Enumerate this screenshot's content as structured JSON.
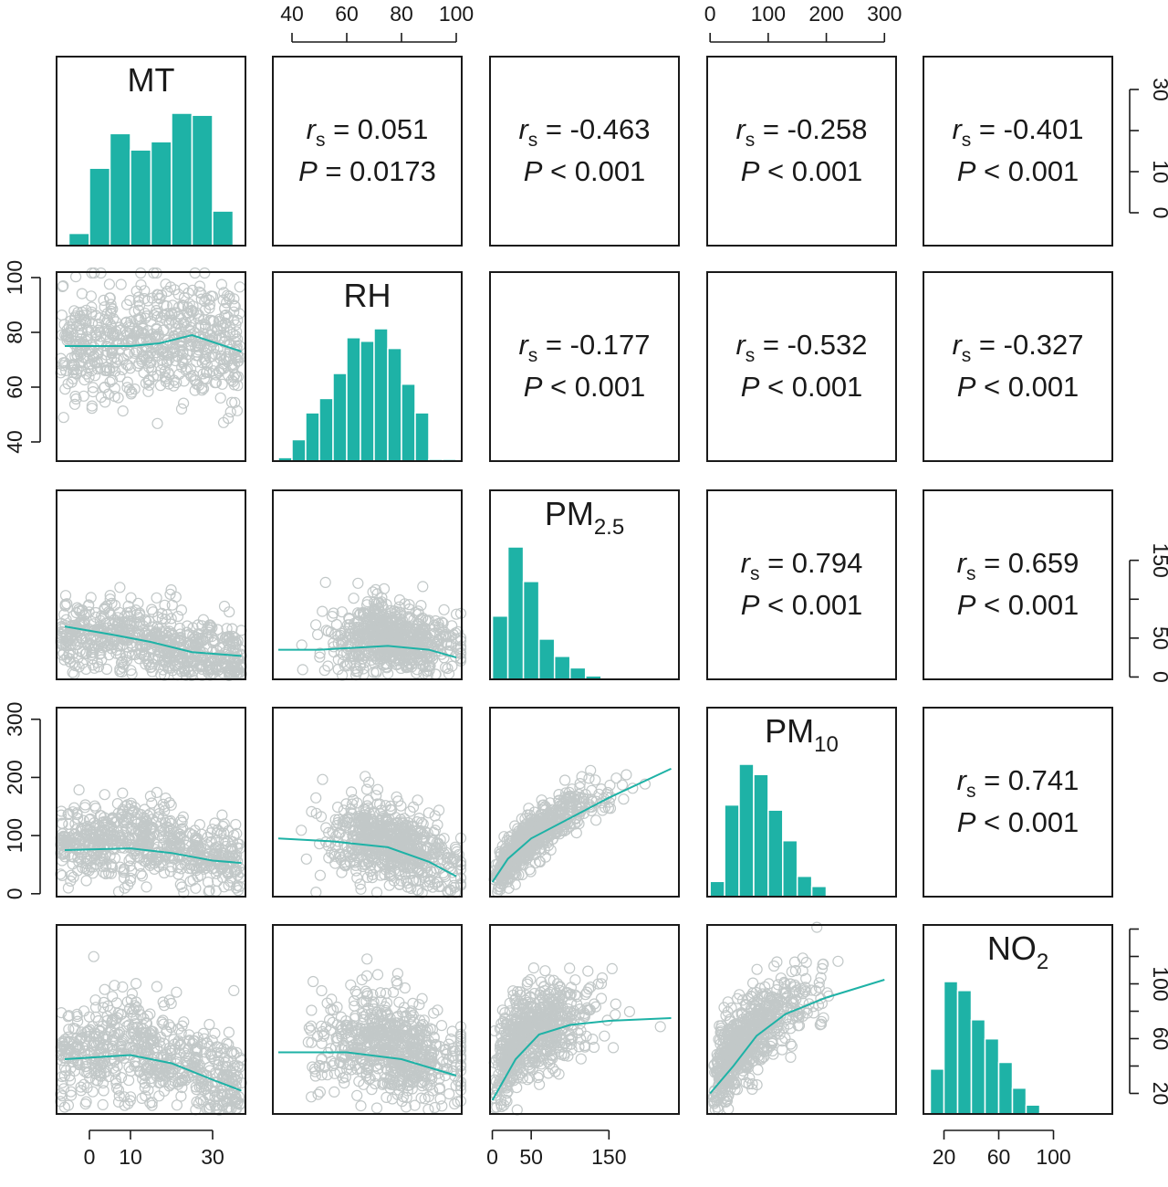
{
  "chart_data": {
    "type": "scatter-matrix",
    "colors": {
      "bar": "#1eb2a6",
      "smooth": "#1eb2a6",
      "points": "#c2c8c8"
    },
    "variables": [
      {
        "id": "MT",
        "label": "MT",
        "sub": "",
        "range": [
          -8,
          38
        ]
      },
      {
        "id": "RH",
        "label": "RH",
        "sub": "",
        "range": [
          33,
          102
        ]
      },
      {
        "id": "PM25",
        "label": "PM",
        "sub": "2.5",
        "range": [
          -3,
          240
        ]
      },
      {
        "id": "PM10",
        "label": "PM",
        "sub": "10",
        "range": [
          -5,
          320
        ]
      },
      {
        "id": "NO2",
        "label": "NO",
        "sub": "2",
        "range": [
          5,
          143
        ]
      }
    ],
    "axes": {
      "top": [
        {
          "col": 1,
          "ticks": [
            40,
            60,
            80,
            100
          ]
        },
        {
          "col": 3,
          "ticks": [
            0,
            100,
            200,
            300
          ]
        }
      ],
      "bottom": [
        {
          "col": 0,
          "ticks": [
            0,
            10,
            30
          ]
        },
        {
          "col": 2,
          "ticks": [
            0,
            50,
            150
          ]
        },
        {
          "col": 4,
          "ticks": [
            20,
            60,
            100
          ]
        }
      ],
      "left": [
        {
          "row": 1,
          "ticks": [
            40,
            60,
            80,
            100
          ]
        },
        {
          "row": 3,
          "ticks": [
            0,
            100,
            200,
            300
          ]
        }
      ],
      "right": [
        {
          "row": 0,
          "ticks": [
            0,
            10,
            30
          ],
          "minor": [
            20
          ]
        },
        {
          "row": 2,
          "ticks": [
            0,
            50,
            150
          ],
          "minor": [
            100
          ]
        },
        {
          "row": 4,
          "ticks": [
            20,
            60,
            100
          ],
          "minor": [
            40,
            80,
            120,
            140
          ]
        }
      ]
    },
    "histograms": [
      {
        "var": 0,
        "edges": [
          -5,
          0,
          5,
          10,
          15,
          20,
          25,
          30,
          35
        ],
        "counts": [
          6,
          38,
          55,
          47,
          51,
          65,
          64,
          17
        ]
      },
      {
        "var": 1,
        "edges": [
          35,
          40,
          45,
          50,
          55,
          60,
          65,
          70,
          75,
          80,
          85,
          90,
          95,
          100
        ],
        "counts": [
          2,
          12,
          27,
          35,
          49,
          69,
          67,
          74,
          63,
          43,
          27,
          1,
          1
        ]
      },
      {
        "var": 2,
        "edges": [
          0,
          20,
          40,
          60,
          80,
          100,
          120,
          140
        ],
        "counts": [
          55,
          115,
          85,
          35,
          20,
          10,
          3
        ]
      },
      {
        "var": 3,
        "edges": [
          0,
          25,
          50,
          75,
          100,
          125,
          150,
          175,
          200
        ],
        "counts": [
          15,
          90,
          130,
          120,
          85,
          55,
          20,
          10
        ]
      },
      {
        "var": 4,
        "edges": [
          10,
          20,
          30,
          40,
          50,
          60,
          70,
          80,
          90,
          100
        ],
        "counts": [
          40,
          118,
          110,
          84,
          67,
          46,
          23,
          8,
          1
        ]
      }
    ],
    "correlations": [
      {
        "row": 0,
        "col": 1,
        "r": "0.051",
        "p_op": "=",
        "p": "0.0173"
      },
      {
        "row": 0,
        "col": 2,
        "r": "-0.463",
        "p_op": "<",
        "p": "0.001"
      },
      {
        "row": 0,
        "col": 3,
        "r": "-0.258",
        "p_op": "<",
        "p": "0.001"
      },
      {
        "row": 0,
        "col": 4,
        "r": "-0.401",
        "p_op": "<",
        "p": "0.001"
      },
      {
        "row": 1,
        "col": 2,
        "r": "-0.177",
        "p_op": "<",
        "p": "0.001"
      },
      {
        "row": 1,
        "col": 3,
        "r": "-0.532",
        "p_op": "<",
        "p": "0.001"
      },
      {
        "row": 1,
        "col": 4,
        "r": "-0.327",
        "p_op": "<",
        "p": "0.001"
      },
      {
        "row": 2,
        "col": 3,
        "r": "0.794",
        "p_op": "<",
        "p": "0.001"
      },
      {
        "row": 2,
        "col": 4,
        "r": "0.659",
        "p_op": "<",
        "p": "0.001"
      },
      {
        "row": 3,
        "col": 4,
        "r": "0.741",
        "p_op": "<",
        "p": "0.001"
      }
    ],
    "scatter_panels": [
      {
        "row": 1,
        "col": 0,
        "n": 650,
        "x": [
          0,
          1
        ],
        "y_center": [
          [
            -6,
            75
          ],
          [
            10,
            75
          ],
          [
            25,
            79
          ],
          [
            37,
            73
          ]
        ],
        "y_spread": 13,
        "smooth": [
          [
            -6,
            75
          ],
          [
            10,
            75
          ],
          [
            17,
            76
          ],
          [
            25,
            79
          ],
          [
            37,
            73
          ]
        ]
      },
      {
        "row": 2,
        "col": 0,
        "n": 650,
        "x": [
          0,
          1
        ],
        "y_center": [
          [
            -6,
            55
          ],
          [
            10,
            55
          ],
          [
            25,
            30
          ],
          [
            37,
            25
          ]
        ],
        "y_spread": 28,
        "smooth": [
          [
            -6,
            65
          ],
          [
            5,
            55
          ],
          [
            15,
            45
          ],
          [
            25,
            32
          ],
          [
            37,
            27
          ]
        ]
      },
      {
        "row": 2,
        "col": 1,
        "n": 650,
        "x": [
          1,
          1
        ],
        "y_center": [
          [
            35,
            35
          ],
          [
            70,
            55
          ],
          [
            100,
            35
          ]
        ],
        "y_spread": 28,
        "smooth": [
          [
            35,
            35
          ],
          [
            50,
            35
          ],
          [
            75,
            40
          ],
          [
            90,
            35
          ],
          [
            100,
            25
          ]
        ]
      },
      {
        "row": 3,
        "col": 0,
        "n": 650,
        "x": [
          0,
          1
        ],
        "y_center": [
          [
            -6,
            80
          ],
          [
            10,
            95
          ],
          [
            25,
            70
          ],
          [
            37,
            60
          ]
        ],
        "y_spread": 40,
        "smooth": [
          [
            -6,
            75
          ],
          [
            10,
            78
          ],
          [
            20,
            70
          ],
          [
            30,
            57
          ],
          [
            37,
            53
          ]
        ]
      },
      {
        "row": 3,
        "col": 1,
        "n": 650,
        "x": [
          1,
          1
        ],
        "y_center": [
          [
            35,
            90
          ],
          [
            70,
            95
          ],
          [
            100,
            40
          ]
        ],
        "y_spread": 40,
        "smooth": [
          [
            35,
            95
          ],
          [
            55,
            90
          ],
          [
            75,
            80
          ],
          [
            90,
            55
          ],
          [
            100,
            30
          ]
        ]
      },
      {
        "row": 3,
        "col": 2,
        "n": 650,
        "x": [
          2,
          1
        ],
        "y_center": [
          [
            0,
            25
          ],
          [
            50,
            100
          ],
          [
            100,
            140
          ],
          [
            150,
            170
          ],
          [
            230,
            215
          ]
        ],
        "y_spread": 25,
        "smooth": [
          [
            0,
            20
          ],
          [
            20,
            60
          ],
          [
            50,
            95
          ],
          [
            100,
            130
          ],
          [
            150,
            165
          ],
          [
            230,
            215
          ]
        ]
      },
      {
        "row": 4,
        "col": 0,
        "n": 650,
        "x": [
          0,
          1
        ],
        "y_center": [
          [
            -6,
            45
          ],
          [
            10,
            55
          ],
          [
            25,
            40
          ],
          [
            37,
            25
          ]
        ],
        "y_spread": 22,
        "smooth": [
          [
            -6,
            45
          ],
          [
            10,
            48
          ],
          [
            20,
            42
          ],
          [
            30,
            30
          ],
          [
            37,
            22
          ]
        ]
      },
      {
        "row": 4,
        "col": 1,
        "n": 650,
        "x": [
          1,
          1
        ],
        "y_center": [
          [
            35,
            50
          ],
          [
            70,
            60
          ],
          [
            100,
            40
          ]
        ],
        "y_spread": 22,
        "smooth": [
          [
            35,
            50
          ],
          [
            60,
            50
          ],
          [
            80,
            45
          ],
          [
            100,
            33
          ]
        ]
      },
      {
        "row": 4,
        "col": 2,
        "n": 650,
        "x": [
          2,
          1
        ],
        "y_center": [
          [
            0,
            30
          ],
          [
            40,
            65
          ],
          [
            100,
            75
          ],
          [
            150,
            80
          ]
        ],
        "y_spread": 20,
        "smooth": [
          [
            0,
            15
          ],
          [
            30,
            45
          ],
          [
            60,
            63
          ],
          [
            100,
            70
          ],
          [
            150,
            73
          ],
          [
            230,
            75
          ]
        ]
      },
      {
        "row": 4,
        "col": 3,
        "n": 650,
        "x": [
          3,
          1
        ],
        "y_center": [
          [
            0,
            25
          ],
          [
            60,
            60
          ],
          [
            120,
            80
          ],
          [
            200,
            95
          ]
        ],
        "y_spread": 18,
        "smooth": [
          [
            0,
            20
          ],
          [
            40,
            40
          ],
          [
            80,
            62
          ],
          [
            130,
            78
          ],
          [
            200,
            90
          ],
          [
            300,
            103
          ]
        ]
      }
    ]
  }
}
